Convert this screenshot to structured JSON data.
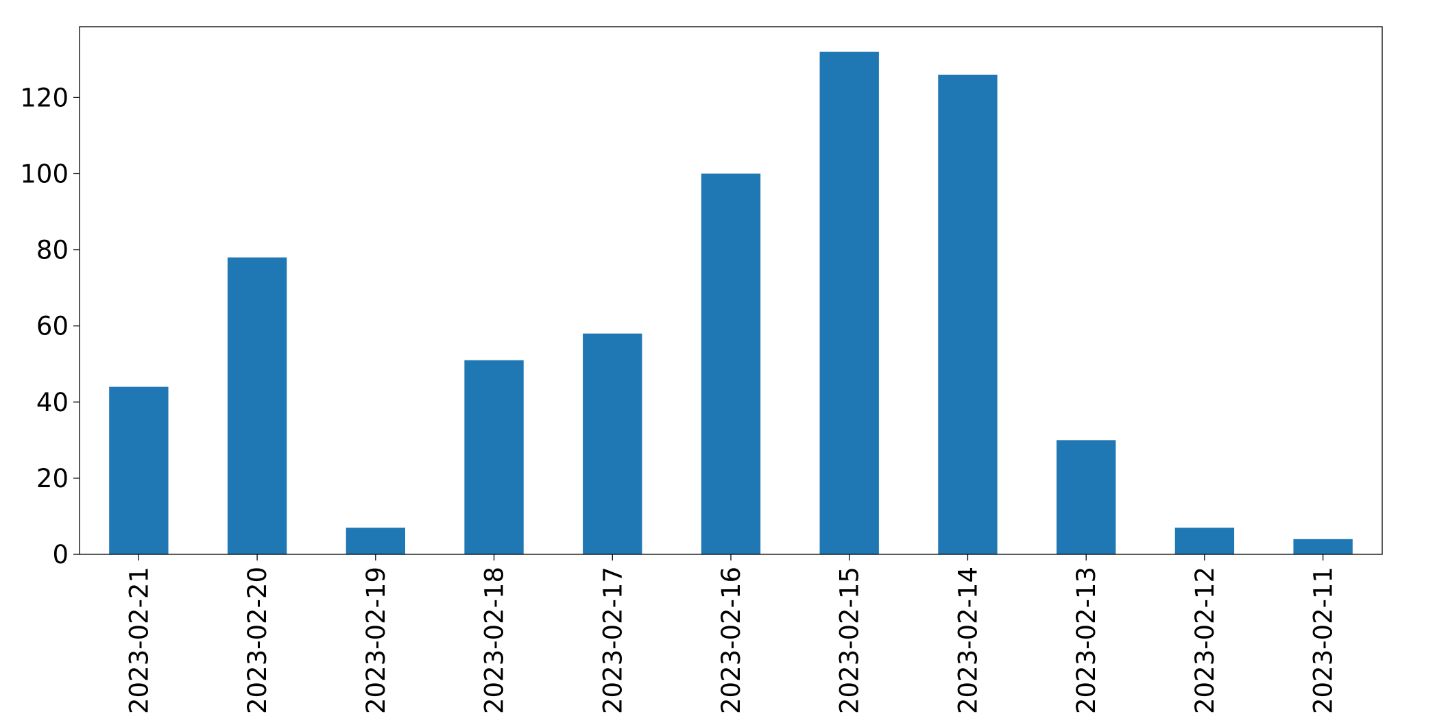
{
  "chart_data": {
    "type": "bar",
    "categories": [
      "2023-02-21",
      "2023-02-20",
      "2023-02-19",
      "2023-02-18",
      "2023-02-17",
      "2023-02-16",
      "2023-02-15",
      "2023-02-14",
      "2023-02-13",
      "2023-02-12",
      "2023-02-11"
    ],
    "values": [
      44,
      78,
      7,
      51,
      58,
      100,
      132,
      126,
      30,
      7,
      4
    ],
    "color": "#1f77b4",
    "ylim": [
      0,
      138.6
    ],
    "yticks": [
      0,
      20,
      40,
      60,
      80,
      100,
      120
    ],
    "grid": false
  }
}
